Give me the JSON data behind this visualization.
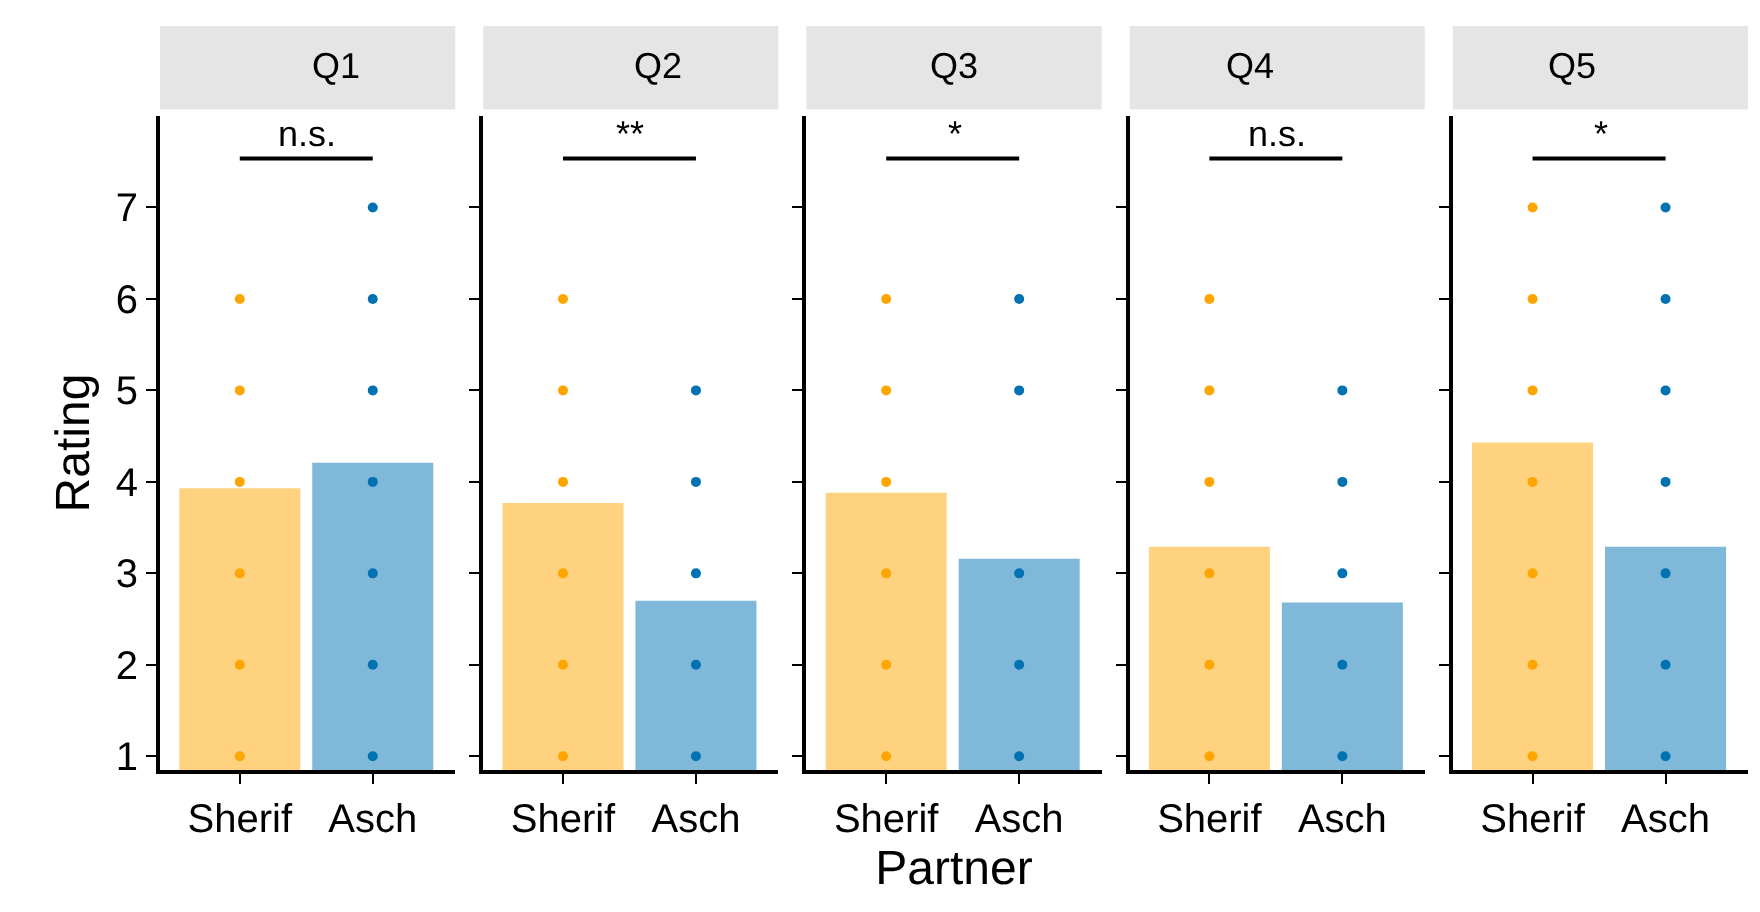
{
  "chart_data": [
    {
      "type": "bar",
      "title": "Q1",
      "ylabel": "Rating",
      "categories": [
        "Sherif",
        "Asch"
      ],
      "ylim": [
        0.85,
        8.0
      ],
      "yticks": [
        1,
        2,
        3,
        4,
        5,
        6,
        7
      ],
      "annotations": [
        "n.s."
      ],
      "series": [
        {
          "colors": [
            "#ffd27f",
            "#7fb8d8"
          ],
          "values": [
            3.93,
            4.21
          ]
        },
        {
          "type": "scatter",
          "color": "#ffa500",
          "marker": "circle",
          "x": [
            "Sherif",
            "Sherif",
            "Sherif",
            "Sherif",
            "Sherif",
            "Sherif"
          ],
          "values": [
            1,
            2,
            3,
            4,
            5,
            6
          ]
        },
        {
          "type": "scatter",
          "color": "#0072b2",
          "marker": "circle",
          "x": [
            "Asch",
            "Asch",
            "Asch",
            "Asch",
            "Asch",
            "Asch",
            "Asch"
          ],
          "values": [
            1,
            2,
            3,
            4,
            5,
            6,
            7
          ]
        }
      ]
    },
    {
      "type": "bar",
      "title": "Q2",
      "categories": [
        "Sherif",
        "Asch"
      ],
      "ylim": [
        0.85,
        8.0
      ],
      "yticks": [
        1,
        2,
        3,
        4,
        5,
        6,
        7
      ],
      "tick_labels": "x",
      "annotations": [
        "**"
      ],
      "series": [
        {
          "colors": [
            "#ffd27f",
            "#7fb8d8"
          ],
          "values": [
            3.77,
            2.7
          ]
        },
        {
          "type": "scatter",
          "color": "#ffa500",
          "marker": "circle",
          "x": [
            "Sherif",
            "Sherif",
            "Sherif",
            "Sherif",
            "Sherif",
            "Sherif"
          ],
          "values": [
            1,
            2,
            3,
            4,
            5,
            6
          ]
        },
        {
          "type": "scatter",
          "color": "#0072b2",
          "marker": "circle",
          "x": [
            "Asch",
            "Asch",
            "Asch",
            "Asch",
            "Asch"
          ],
          "values": [
            1,
            2,
            3,
            4,
            5
          ]
        }
      ]
    },
    {
      "type": "bar",
      "title": "Q3",
      "xlabel": "Partner",
      "categories": [
        "Sherif",
        "Asch"
      ],
      "ylim": [
        0.85,
        8.0
      ],
      "yticks": [
        1,
        2,
        3,
        4,
        5,
        6,
        7
      ],
      "tick_labels": "x",
      "annotations": [
        "*"
      ],
      "series": [
        {
          "colors": [
            "#ffd27f",
            "#7fb8d8"
          ],
          "values": [
            3.88,
            3.16
          ]
        },
        {
          "type": "scatter",
          "color": "#ffa500",
          "marker": "circle",
          "x": [
            "Sherif",
            "Sherif",
            "Sherif",
            "Sherif",
            "Sherif",
            "Sherif"
          ],
          "values": [
            1,
            2,
            3,
            4,
            5,
            6
          ]
        },
        {
          "type": "scatter",
          "color": "#0072b2",
          "marker": "circle",
          "x": [
            "Asch",
            "Asch",
            "Asch",
            "Asch",
            "Asch"
          ],
          "values": [
            1,
            2,
            3,
            5,
            6
          ]
        }
      ]
    },
    {
      "type": "bar",
      "title": "Q4",
      "categories": [
        "Sherif",
        "Asch"
      ],
      "ylim": [
        0.85,
        8.0
      ],
      "yticks": [
        1,
        2,
        3,
        4,
        5,
        6,
        7
      ],
      "tick_labels": "x",
      "annotations": [
        "n.s."
      ],
      "series": [
        {
          "colors": [
            "#ffd27f",
            "#7fb8d8"
          ],
          "values": [
            3.29,
            2.68
          ]
        },
        {
          "type": "scatter",
          "color": "#ffa500",
          "marker": "circle",
          "x": [
            "Sherif",
            "Sherif",
            "Sherif",
            "Sherif",
            "Sherif",
            "Sherif"
          ],
          "values": [
            1,
            2,
            3,
            4,
            5,
            6
          ]
        },
        {
          "type": "scatter",
          "color": "#0072b2",
          "marker": "circle",
          "x": [
            "Asch",
            "Asch",
            "Asch",
            "Asch",
            "Asch"
          ],
          "values": [
            1,
            2,
            3,
            4,
            5
          ]
        }
      ]
    },
    {
      "type": "bar",
      "title": "Q5",
      "categories": [
        "Sherif",
        "Asch"
      ],
      "ylim": [
        0.85,
        8.0
      ],
      "yticks": [
        1,
        2,
        3,
        4,
        5,
        6,
        7
      ],
      "tick_labels": "x",
      "annotations": [
        "*"
      ],
      "series": [
        {
          "colors": [
            "#ffd27f",
            "#7fb8d8"
          ],
          "values": [
            4.43,
            3.29
          ]
        },
        {
          "type": "scatter",
          "color": "#ffa500",
          "marker": "circle",
          "x": [
            "Sherif",
            "Sherif",
            "Sherif",
            "Sherif",
            "Sherif",
            "Sherif",
            "Sherif"
          ],
          "values": [
            1,
            2,
            3,
            4,
            5,
            6,
            7
          ]
        },
        {
          "type": "scatter",
          "color": "#0072b2",
          "marker": "circle",
          "x": [
            "Asch",
            "Asch",
            "Asch",
            "Asch",
            "Asch",
            "Asch",
            "Asch"
          ],
          "values": [
            1,
            2,
            3,
            4,
            5,
            6,
            7
          ]
        }
      ]
    }
  ]
}
